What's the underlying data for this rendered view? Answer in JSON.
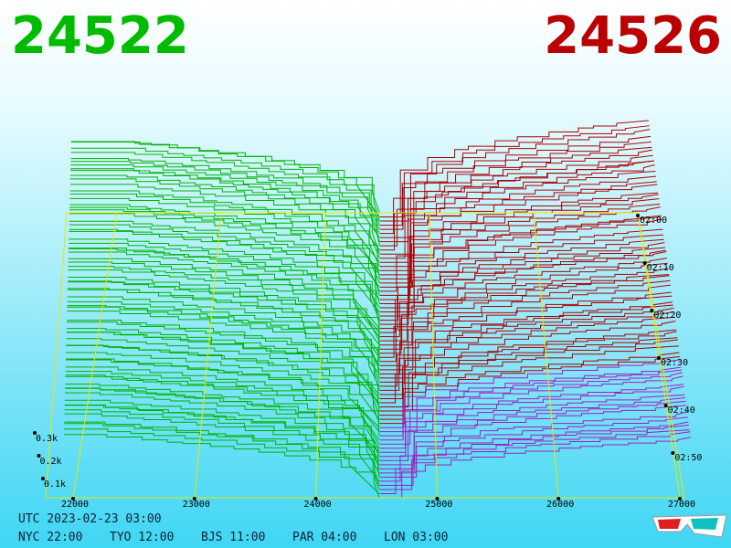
{
  "header": {
    "bid": "24522",
    "ask": "24526"
  },
  "price_axis": {
    "ticks": [
      22000,
      23000,
      24000,
      25000,
      26000,
      27000
    ]
  },
  "time_axis": {
    "ticks": [
      "02:00",
      "02:10",
      "02:20",
      "02:30",
      "02:40",
      "02:50"
    ]
  },
  "volume_axis": {
    "ticks": [
      "0.3k",
      "0.2k",
      "0.1k"
    ]
  },
  "clock": {
    "utc": "UTC 2023-02-23 03:00",
    "cities": [
      "NYC 22:00",
      "TYO 12:00",
      "BJS 11:00",
      "PAR 04:00",
      "LON 03:00"
    ]
  }
}
